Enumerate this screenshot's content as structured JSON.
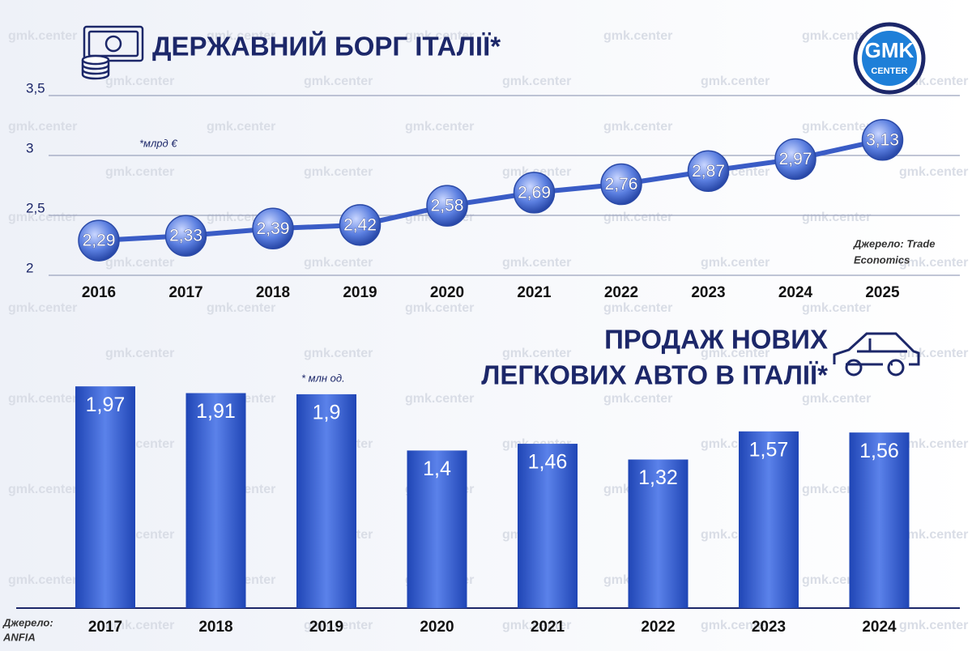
{
  "watermark": "gmk.center",
  "logo": {
    "top": "GMK",
    "bottom": "CENTER"
  },
  "chart_data": [
    {
      "type": "line",
      "title": "ДЕРЖАВНИЙ БОРГ ІТАЛІЇ*",
      "unit_note": "*млрд €",
      "source": [
        "Джерело: Trade",
        "Economics"
      ],
      "categories": [
        "2016",
        "2017",
        "2018",
        "2019",
        "2020",
        "2021",
        "2022",
        "2023",
        "2024",
        "2025"
      ],
      "values": [
        2.29,
        2.33,
        2.39,
        2.42,
        2.58,
        2.69,
        2.76,
        2.87,
        2.97,
        3.13
      ],
      "value_labels": [
        "2,29",
        "2,33",
        "2,39",
        "2,42",
        "2,58",
        "2,69",
        "2,76",
        "2,87",
        "2,97",
        "3,13"
      ],
      "color": "#3a5cc6",
      "ylim": [
        2,
        3.5
      ],
      "yticks": [
        2,
        {
          "value": 2.5,
          "label": "2,5"
        },
        3,
        {
          "value": 3.5,
          "label": "3,5"
        }
      ],
      "grid": true
    },
    {
      "type": "bar",
      "title": [
        "ПРОДАЖ НОВИХ",
        "ЛЕГКОВИХ АВТО В ІТАЛІЇ*"
      ],
      "unit_note": "* млн од.",
      "source": [
        "Джерело:",
        "ANFIA"
      ],
      "categories": [
        "2017",
        "2018",
        "2019",
        "2020",
        "2021",
        "2022",
        "2023",
        "2024"
      ],
      "values": [
        1.97,
        1.91,
        1.9,
        1.4,
        1.46,
        1.32,
        1.57,
        1.56
      ],
      "value_labels": [
        "1,97",
        "1,91",
        "1,9",
        "1,4",
        "1,46",
        "1,32",
        "1,57",
        "1,56"
      ],
      "color": "#2f55c4"
    }
  ]
}
